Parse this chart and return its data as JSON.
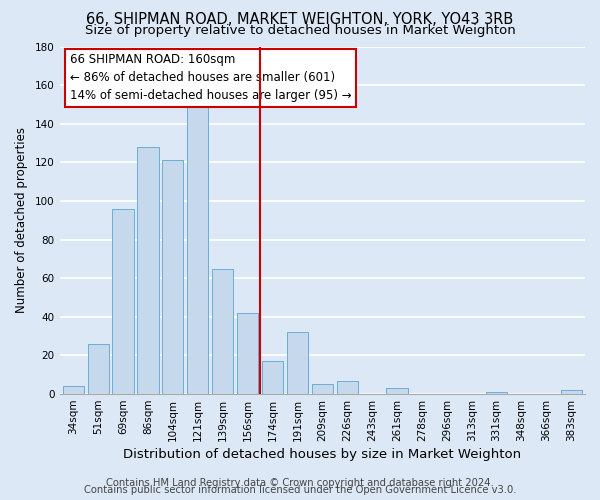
{
  "title": "66, SHIPMAN ROAD, MARKET WEIGHTON, YORK, YO43 3RB",
  "subtitle": "Size of property relative to detached houses in Market Weighton",
  "xlabel": "Distribution of detached houses by size in Market Weighton",
  "ylabel": "Number of detached properties",
  "bar_labels": [
    "34sqm",
    "51sqm",
    "69sqm",
    "86sqm",
    "104sqm",
    "121sqm",
    "139sqm",
    "156sqm",
    "174sqm",
    "191sqm",
    "209sqm",
    "226sqm",
    "243sqm",
    "261sqm",
    "278sqm",
    "296sqm",
    "313sqm",
    "331sqm",
    "348sqm",
    "366sqm",
    "383sqm"
  ],
  "bar_values": [
    4,
    26,
    96,
    128,
    121,
    150,
    65,
    42,
    17,
    32,
    5,
    7,
    0,
    3,
    0,
    0,
    0,
    1,
    0,
    0,
    2
  ],
  "bar_color": "#c6d9ec",
  "bar_edge_color": "#6aaed6",
  "vline_x": 7.5,
  "vline_color": "#cc0000",
  "annotation_line1": "66 SHIPMAN ROAD: 160sqm",
  "annotation_line2": "← 86% of detached houses are smaller (601)",
  "annotation_line3": "14% of semi-detached houses are larger (95) →",
  "annotation_box_color": "#ffffff",
  "annotation_box_edge_color": "#cc0000",
  "ylim": [
    0,
    180
  ],
  "yticks": [
    0,
    20,
    40,
    60,
    80,
    100,
    120,
    140,
    160,
    180
  ],
  "footer1": "Contains HM Land Registry data © Crown copyright and database right 2024.",
  "footer2": "Contains public sector information licensed under the Open Government Licence v3.0.",
  "background_color": "#dce8f5",
  "grid_color": "#ffffff",
  "title_fontsize": 10.5,
  "subtitle_fontsize": 9.5,
  "xlabel_fontsize": 9.5,
  "ylabel_fontsize": 8.5,
  "tick_fontsize": 7.5,
  "annotation_fontsize": 8.5,
  "footer_fontsize": 7.2
}
